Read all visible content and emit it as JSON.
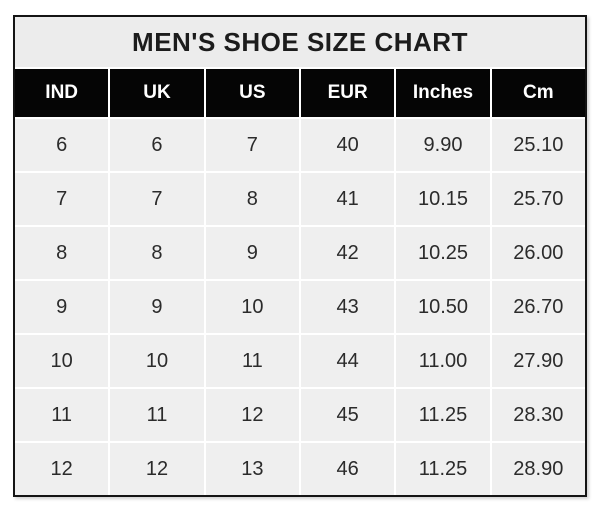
{
  "title": "MEN'S SHOE SIZE CHART",
  "table": {
    "columns": [
      "IND",
      "UK",
      "US",
      "EUR",
      "Inches",
      "Cm"
    ],
    "rows": [
      [
        "6",
        "6",
        "7",
        "40",
        "9.90",
        "25.10"
      ],
      [
        "7",
        "7",
        "8",
        "41",
        "10.15",
        "25.70"
      ],
      [
        "8",
        "8",
        "9",
        "42",
        "10.25",
        "26.00"
      ],
      [
        "9",
        "9",
        "10",
        "43",
        "10.50",
        "26.70"
      ],
      [
        "10",
        "10",
        "11",
        "44",
        "11.00",
        "27.90"
      ],
      [
        "11",
        "11",
        "12",
        "45",
        "11.25",
        "28.30"
      ],
      [
        "12",
        "12",
        "13",
        "46",
        "11.25",
        "28.90"
      ]
    ]
  },
  "colors": {
    "header_bg": "#050505",
    "header_text": "#ffffff",
    "title_bg": "#ececec",
    "cell_bg": "#efefef",
    "cell_text": "#2b2b2b",
    "border": "#141414",
    "gridline": "#ffffff"
  },
  "chart_data": {
    "type": "table",
    "title": "MEN'S SHOE SIZE CHART",
    "columns": [
      "IND",
      "UK",
      "US",
      "EUR",
      "Inches",
      "Cm"
    ],
    "rows": [
      [
        6,
        6,
        7,
        40,
        9.9,
        25.1
      ],
      [
        7,
        7,
        8,
        41,
        10.15,
        25.7
      ],
      [
        8,
        8,
        9,
        42,
        10.25,
        26.0
      ],
      [
        9,
        9,
        10,
        43,
        10.5,
        26.7
      ],
      [
        10,
        10,
        11,
        44,
        11.0,
        27.9
      ],
      [
        11,
        11,
        12,
        45,
        11.25,
        28.3
      ],
      [
        12,
        12,
        13,
        46,
        11.25,
        28.9
      ]
    ]
  }
}
